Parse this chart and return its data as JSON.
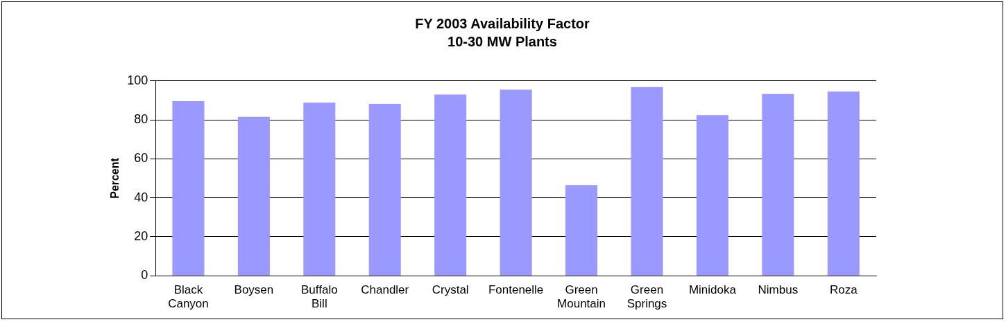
{
  "chart_data": {
    "type": "bar",
    "title": "FY 2003 Availability Factor\n10-30 MW Plants",
    "ylabel": "Percent",
    "categories": [
      "Black Canyon",
      "Boysen",
      "Buffalo Bill",
      "Chandler",
      "Crystal",
      "Fontenelle",
      "Green Mountain",
      "Green Springs",
      "Minidoka",
      "Nimbus",
      "Roza"
    ],
    "values": [
      89.6,
      81.5,
      88.8,
      88.2,
      93,
      95.5,
      46.5,
      96.8,
      82.4,
      93.3,
      94.5
    ],
    "color": "#9999ff",
    "ylim": [
      0,
      100
    ],
    "yticks": [
      0,
      20,
      40,
      60,
      80,
      100
    ],
    "grid": "y",
    "legend": false
  }
}
